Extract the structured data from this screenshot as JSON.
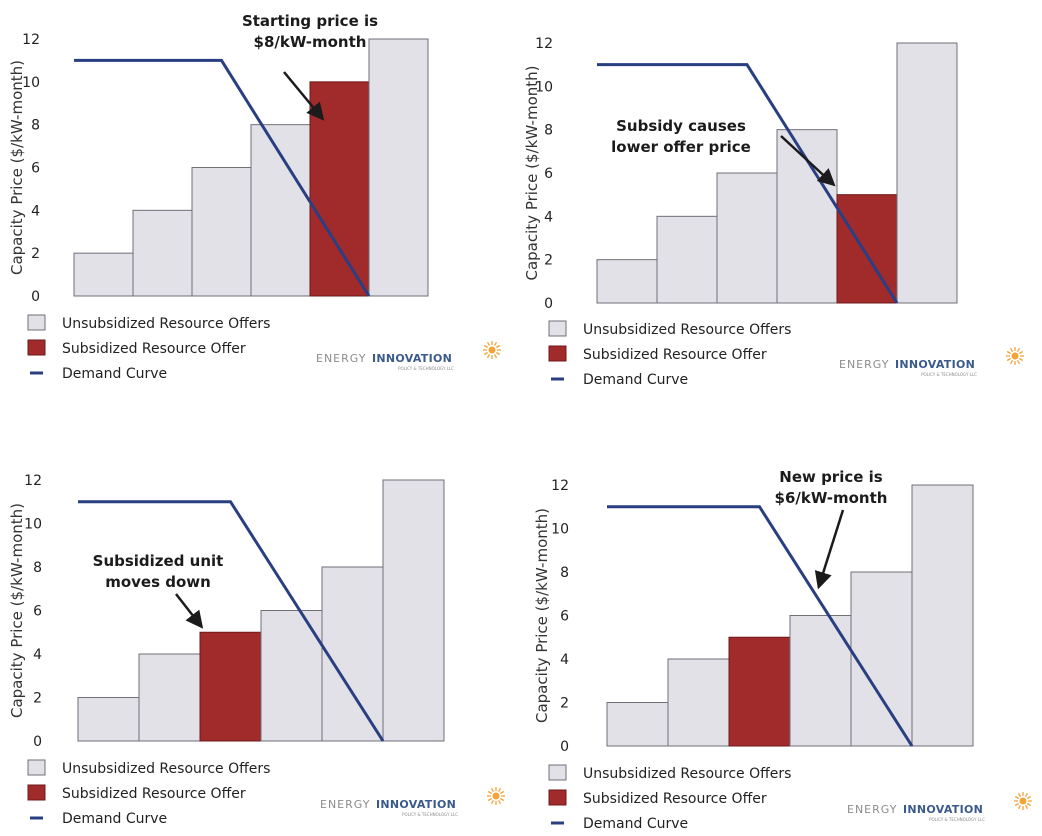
{
  "colors": {
    "unsubsidized_fill": "#e1e1e7",
    "unsubsidized_stroke": "#6f6f78",
    "subsidized_fill": "#a12a2a",
    "demand": "#2a3f82",
    "brand_sun": "#f2a43a"
  },
  "legend": {
    "unsubsidized": "Unsubsidized Resource Offers",
    "subsidized": "Subsidized Resource Offer",
    "demand": "Demand Curve"
  },
  "brand": {
    "part1": "ENERGY",
    "part2": "INNOVATION",
    "tagline": "POLICY & TECHNOLOGY LLC"
  },
  "chart_data": [
    {
      "type": "bar",
      "ylabel": "Capacity Price ($/kW-month)",
      "ylim": [
        0,
        12
      ],
      "yticks": [
        0,
        2,
        4,
        6,
        8,
        10,
        12
      ],
      "bars": [
        2,
        4,
        6,
        8,
        10,
        12
      ],
      "subsidized_index": 4,
      "demand_curve": [
        [
          0,
          11
        ],
        [
          2.5,
          11
        ],
        [
          5,
          0
        ]
      ],
      "annotation": [
        "Starting price is",
        "$8/kW-month"
      ]
    },
    {
      "type": "bar",
      "ylabel": "Capacity Price ($/kW-month)",
      "ylim": [
        0,
        12
      ],
      "yticks": [
        0,
        2,
        4,
        6,
        8,
        10,
        12
      ],
      "bars": [
        2,
        4,
        6,
        8,
        5,
        12
      ],
      "subsidized_index": 4,
      "demand_curve": [
        [
          0,
          11
        ],
        [
          2.5,
          11
        ],
        [
          5,
          0
        ]
      ],
      "annotation": [
        "Subsidy causes",
        "lower offer price"
      ]
    },
    {
      "type": "bar",
      "ylabel": "Capacity Price ($/kW-month)",
      "ylim": [
        0,
        12
      ],
      "yticks": [
        0,
        2,
        4,
        6,
        8,
        10,
        12
      ],
      "bars": [
        2,
        4,
        5,
        6,
        8,
        12
      ],
      "subsidized_index": 2,
      "demand_curve": [
        [
          0,
          11
        ],
        [
          2.5,
          11
        ],
        [
          5,
          0
        ]
      ],
      "annotation": [
        "Subsidized unit",
        "moves down"
      ]
    },
    {
      "type": "bar",
      "ylabel": "Capacity Price ($/kW-month)",
      "ylim": [
        0,
        12
      ],
      "yticks": [
        0,
        2,
        4,
        6,
        8,
        10,
        12
      ],
      "bars": [
        2,
        4,
        5,
        6,
        8,
        12
      ],
      "subsidized_index": 2,
      "demand_curve": [
        [
          0,
          11
        ],
        [
          2.5,
          11
        ],
        [
          5,
          0
        ]
      ],
      "annotation": [
        "New price is",
        "$6/kW-month"
      ]
    }
  ]
}
